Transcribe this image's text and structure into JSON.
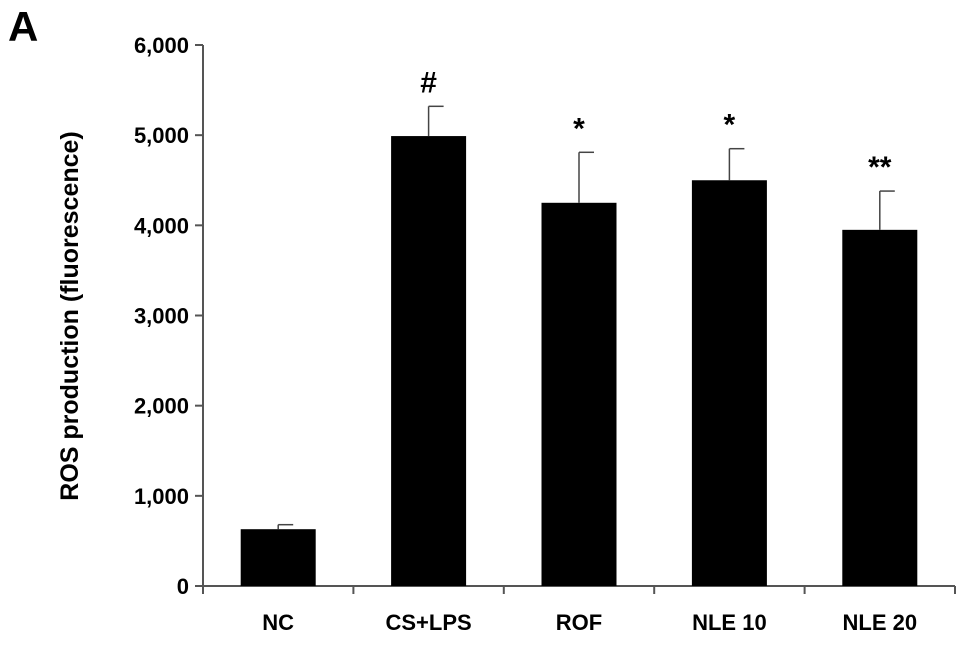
{
  "panel_label": "A",
  "chart_data": {
    "type": "bar",
    "categories": [
      "NC",
      "CS+LPS",
      "ROF",
      "NLE 10",
      "NLE 20"
    ],
    "values": [
      630,
      4990,
      4250,
      4500,
      3950
    ],
    "errors": [
      50,
      330,
      560,
      350,
      430
    ],
    "annotations": [
      "",
      "#",
      "*",
      "*",
      "**"
    ],
    "title": "",
    "xlabel": "",
    "ylabel": "ROS production (fluorescence)",
    "ylim": [
      0,
      6000
    ],
    "yticks": [
      0,
      1000,
      2000,
      3000,
      4000,
      5000,
      6000
    ],
    "ytick_labels": [
      "0",
      "1,000",
      "2,000",
      "3,000",
      "4,000",
      "5,000",
      "6,000"
    ],
    "bar_color": "#000000",
    "grid": false,
    "legend": "none"
  }
}
